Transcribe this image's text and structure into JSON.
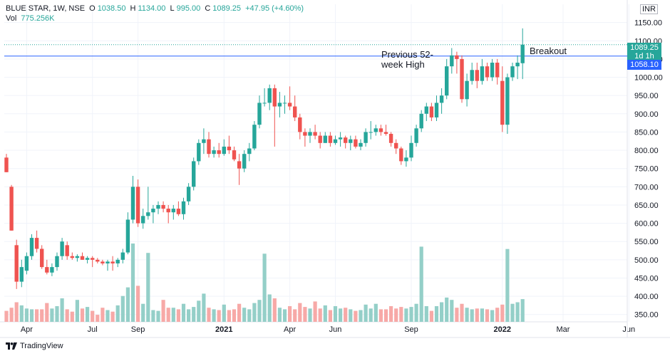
{
  "header": {
    "symbol": "BLUE STAR, 1W, NSE",
    "open_label": "O",
    "open": "1038.50",
    "high_label": "H",
    "high": "1134.00",
    "low_label": "L",
    "low": "995.00",
    "close_label": "C",
    "close": "1089.25",
    "change": "+47.95 (+4.60%)",
    "vol_label": "Vol",
    "vol_value": "775.256K",
    "currency": "INR"
  },
  "price_badge": {
    "value": "1089.25",
    "timer": "1d 1h"
  },
  "line_badge": {
    "value": "1058.10"
  },
  "footer": {
    "brand": "TradingView"
  },
  "colors": {
    "up": "#26a69a",
    "down": "#ef5350",
    "vol_up": "#94cfc8",
    "vol_down": "#f7a9a7",
    "line": "#2962ff",
    "dotted": "#26a69a"
  },
  "chart_data": {
    "type": "candlestick",
    "title": "BLUE STAR, 1W, NSE",
    "ylim": [
      330,
      1200
    ],
    "y_ticks": [
      350,
      400,
      450,
      500,
      550,
      600,
      650,
      700,
      750,
      800,
      850,
      900,
      950,
      1000,
      1050,
      1100,
      1150
    ],
    "x_ticks": [
      "Apr",
      "Jul",
      "Sep",
      "2021",
      "Apr",
      "Jun",
      "Sep",
      "2022",
      "Mar",
      "Jun"
    ],
    "volume_max": 1000,
    "candles": [
      {
        "o": 780,
        "h": 790,
        "l": 740,
        "c": 740,
        "v": 140
      },
      {
        "o": 700,
        "h": 705,
        "l": 580,
        "c": 580,
        "v": 180
      },
      {
        "o": 540,
        "h": 555,
        "l": 420,
        "c": 440,
        "v": 250
      },
      {
        "o": 440,
        "h": 500,
        "l": 425,
        "c": 480,
        "v": 210
      },
      {
        "o": 470,
        "h": 520,
        "l": 460,
        "c": 510,
        "v": 170
      },
      {
        "o": 510,
        "h": 570,
        "l": 500,
        "c": 560,
        "v": 160
      },
      {
        "o": 560,
        "h": 580,
        "l": 520,
        "c": 530,
        "v": 160
      },
      {
        "o": 530,
        "h": 540,
        "l": 475,
        "c": 480,
        "v": 160
      },
      {
        "o": 480,
        "h": 500,
        "l": 460,
        "c": 465,
        "v": 240
      },
      {
        "o": 465,
        "h": 490,
        "l": 455,
        "c": 480,
        "v": 170
      },
      {
        "o": 480,
        "h": 520,
        "l": 470,
        "c": 510,
        "v": 200
      },
      {
        "o": 510,
        "h": 560,
        "l": 500,
        "c": 550,
        "v": 300
      },
      {
        "o": 540,
        "h": 550,
        "l": 500,
        "c": 510,
        "v": 160
      },
      {
        "o": 510,
        "h": 520,
        "l": 500,
        "c": 505,
        "v": 130
      },
      {
        "o": 505,
        "h": 515,
        "l": 495,
        "c": 510,
        "v": 280
      },
      {
        "o": 510,
        "h": 520,
        "l": 500,
        "c": 500,
        "v": 170
      },
      {
        "o": 500,
        "h": 510,
        "l": 490,
        "c": 505,
        "v": 190
      },
      {
        "o": 505,
        "h": 510,
        "l": 480,
        "c": 500,
        "v": 140
      },
      {
        "o": 500,
        "h": 505,
        "l": 490,
        "c": 495,
        "v": 90
      },
      {
        "o": 495,
        "h": 500,
        "l": 485,
        "c": 490,
        "v": 180
      },
      {
        "o": 490,
        "h": 500,
        "l": 470,
        "c": 495,
        "v": 150
      },
      {
        "o": 495,
        "h": 510,
        "l": 470,
        "c": 490,
        "v": 130
      },
      {
        "o": 490,
        "h": 505,
        "l": 480,
        "c": 500,
        "v": 210
      },
      {
        "o": 500,
        "h": 530,
        "l": 490,
        "c": 520,
        "v": 330
      },
      {
        "o": 520,
        "h": 630,
        "l": 515,
        "c": 610,
        "v": 440
      },
      {
        "o": 610,
        "h": 730,
        "l": 600,
        "c": 700,
        "v": 1000
      },
      {
        "o": 700,
        "h": 720,
        "l": 590,
        "c": 600,
        "v": 460
      },
      {
        "o": 600,
        "h": 640,
        "l": 585,
        "c": 620,
        "v": 230
      },
      {
        "o": 620,
        "h": 700,
        "l": 610,
        "c": 630,
        "v": 880
      },
      {
        "o": 630,
        "h": 650,
        "l": 600,
        "c": 640,
        "v": 150
      },
      {
        "o": 640,
        "h": 660,
        "l": 625,
        "c": 650,
        "v": 140
      },
      {
        "o": 650,
        "h": 660,
        "l": 630,
        "c": 640,
        "v": 280
      },
      {
        "o": 640,
        "h": 650,
        "l": 600,
        "c": 630,
        "v": 180
      },
      {
        "o": 630,
        "h": 650,
        "l": 610,
        "c": 640,
        "v": 180
      },
      {
        "o": 640,
        "h": 660,
        "l": 620,
        "c": 625,
        "v": 160
      },
      {
        "o": 625,
        "h": 670,
        "l": 610,
        "c": 660,
        "v": 230
      },
      {
        "o": 660,
        "h": 710,
        "l": 650,
        "c": 700,
        "v": 160
      },
      {
        "o": 700,
        "h": 780,
        "l": 690,
        "c": 770,
        "v": 190
      },
      {
        "o": 770,
        "h": 830,
        "l": 760,
        "c": 820,
        "v": 270
      },
      {
        "o": 820,
        "h": 860,
        "l": 790,
        "c": 830,
        "v": 360
      },
      {
        "o": 830,
        "h": 850,
        "l": 780,
        "c": 790,
        "v": 180
      },
      {
        "o": 790,
        "h": 810,
        "l": 780,
        "c": 800,
        "v": 160
      },
      {
        "o": 800,
        "h": 820,
        "l": 780,
        "c": 790,
        "v": 150
      },
      {
        "o": 790,
        "h": 830,
        "l": 785,
        "c": 810,
        "v": 220
      },
      {
        "o": 810,
        "h": 840,
        "l": 790,
        "c": 800,
        "v": 150
      },
      {
        "o": 800,
        "h": 810,
        "l": 770,
        "c": 775,
        "v": 160
      },
      {
        "o": 770,
        "h": 790,
        "l": 705,
        "c": 750,
        "v": 230
      },
      {
        "o": 750,
        "h": 800,
        "l": 740,
        "c": 790,
        "v": 180
      },
      {
        "o": 790,
        "h": 820,
        "l": 770,
        "c": 805,
        "v": 160
      },
      {
        "o": 805,
        "h": 880,
        "l": 800,
        "c": 870,
        "v": 240
      },
      {
        "o": 870,
        "h": 950,
        "l": 860,
        "c": 930,
        "v": 280
      },
      {
        "o": 930,
        "h": 970,
        "l": 920,
        "c": 930,
        "v": 870
      },
      {
        "o": 930,
        "h": 980,
        "l": 910,
        "c": 970,
        "v": 350
      },
      {
        "o": 970,
        "h": 980,
        "l": 810,
        "c": 920,
        "v": 300
      },
      {
        "o": 920,
        "h": 960,
        "l": 890,
        "c": 930,
        "v": 180
      },
      {
        "o": 930,
        "h": 950,
        "l": 900,
        "c": 930,
        "v": 160
      },
      {
        "o": 930,
        "h": 975,
        "l": 910,
        "c": 920,
        "v": 200
      },
      {
        "o": 920,
        "h": 950,
        "l": 880,
        "c": 890,
        "v": 160
      },
      {
        "o": 890,
        "h": 900,
        "l": 830,
        "c": 850,
        "v": 240
      },
      {
        "o": 850,
        "h": 860,
        "l": 810,
        "c": 840,
        "v": 190
      },
      {
        "o": 840,
        "h": 860,
        "l": 820,
        "c": 850,
        "v": 170
      },
      {
        "o": 850,
        "h": 870,
        "l": 830,
        "c": 840,
        "v": 260
      },
      {
        "o": 840,
        "h": 850,
        "l": 805,
        "c": 820,
        "v": 170
      },
      {
        "o": 820,
        "h": 850,
        "l": 820,
        "c": 840,
        "v": 210
      },
      {
        "o": 840,
        "h": 850,
        "l": 810,
        "c": 820,
        "v": 150
      },
      {
        "o": 820,
        "h": 840,
        "l": 815,
        "c": 830,
        "v": 200
      },
      {
        "o": 830,
        "h": 850,
        "l": 810,
        "c": 835,
        "v": 170
      },
      {
        "o": 835,
        "h": 840,
        "l": 805,
        "c": 820,
        "v": 180
      },
      {
        "o": 820,
        "h": 840,
        "l": 800,
        "c": 830,
        "v": 160
      },
      {
        "o": 830,
        "h": 840,
        "l": 805,
        "c": 810,
        "v": 140
      },
      {
        "o": 810,
        "h": 830,
        "l": 800,
        "c": 820,
        "v": 150
      },
      {
        "o": 820,
        "h": 860,
        "l": 810,
        "c": 850,
        "v": 220
      },
      {
        "o": 850,
        "h": 880,
        "l": 830,
        "c": 850,
        "v": 170
      },
      {
        "o": 850,
        "h": 870,
        "l": 840,
        "c": 860,
        "v": 230
      },
      {
        "o": 860,
        "h": 870,
        "l": 840,
        "c": 850,
        "v": 160
      },
      {
        "o": 850,
        "h": 870,
        "l": 840,
        "c": 845,
        "v": 160
      },
      {
        "o": 845,
        "h": 850,
        "l": 810,
        "c": 820,
        "v": 200
      },
      {
        "o": 820,
        "h": 830,
        "l": 790,
        "c": 805,
        "v": 170
      },
      {
        "o": 805,
        "h": 810,
        "l": 760,
        "c": 770,
        "v": 190
      },
      {
        "o": 770,
        "h": 800,
        "l": 755,
        "c": 780,
        "v": 170
      },
      {
        "o": 780,
        "h": 840,
        "l": 770,
        "c": 820,
        "v": 190
      },
      {
        "o": 820,
        "h": 870,
        "l": 810,
        "c": 860,
        "v": 230
      },
      {
        "o": 860,
        "h": 910,
        "l": 850,
        "c": 900,
        "v": 960
      },
      {
        "o": 900,
        "h": 930,
        "l": 880,
        "c": 920,
        "v": 200
      },
      {
        "o": 920,
        "h": 930,
        "l": 880,
        "c": 890,
        "v": 140
      },
      {
        "o": 890,
        "h": 950,
        "l": 880,
        "c": 930,
        "v": 200
      },
      {
        "o": 930,
        "h": 970,
        "l": 900,
        "c": 950,
        "v": 250
      },
      {
        "o": 950,
        "h": 1050,
        "l": 940,
        "c": 1030,
        "v": 310
      },
      {
        "o": 1030,
        "h": 1080,
        "l": 1010,
        "c": 1060,
        "v": 280
      },
      {
        "o": 1060,
        "h": 1070,
        "l": 1010,
        "c": 1050,
        "v": 180
      },
      {
        "o": 1050,
        "h": 1060,
        "l": 930,
        "c": 940,
        "v": 230
      },
      {
        "o": 940,
        "h": 1010,
        "l": 920,
        "c": 990,
        "v": 180
      },
      {
        "o": 990,
        "h": 1040,
        "l": 980,
        "c": 1020,
        "v": 160
      },
      {
        "o": 1020,
        "h": 1040,
        "l": 970,
        "c": 990,
        "v": 170
      },
      {
        "o": 990,
        "h": 1050,
        "l": 980,
        "c": 1030,
        "v": 170
      },
      {
        "o": 1030,
        "h": 1040,
        "l": 990,
        "c": 1000,
        "v": 160
      },
      {
        "o": 1000,
        "h": 1050,
        "l": 990,
        "c": 1040,
        "v": 150
      },
      {
        "o": 1040,
        "h": 1050,
        "l": 980,
        "c": 1000,
        "v": 180
      },
      {
        "o": 990,
        "h": 1030,
        "l": 850,
        "c": 870,
        "v": 220
      },
      {
        "o": 870,
        "h": 1010,
        "l": 845,
        "c": 1000,
        "v": 930
      },
      {
        "o": 1000,
        "h": 1040,
        "l": 990,
        "c": 1030,
        "v": 230
      },
      {
        "o": 1030,
        "h": 1060,
        "l": 995,
        "c": 1040,
        "v": 250
      },
      {
        "o": 1038.5,
        "h": 1134,
        "l": 995,
        "c": 1089.25,
        "v": 290
      }
    ],
    "annotations": [
      {
        "text": "Previous 52-",
        "text2": "week High",
        "level": 1058.1
      },
      {
        "text": "Breakout",
        "level": 1089.25
      }
    ]
  }
}
